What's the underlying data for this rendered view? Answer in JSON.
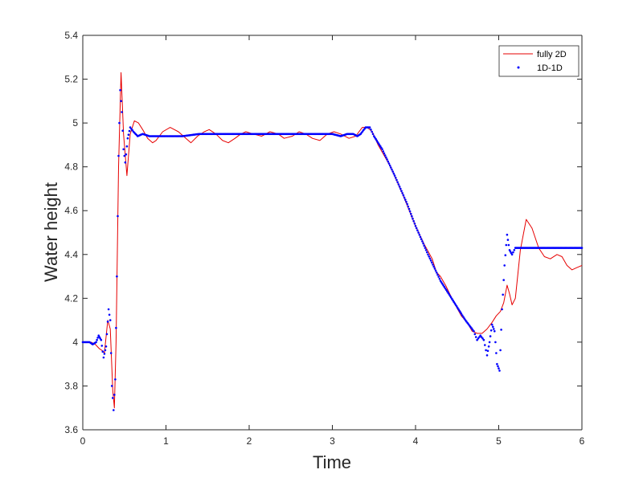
{
  "chart_data": {
    "type": "line",
    "title": "",
    "xlabel": "Time",
    "ylabel": "Water height",
    "xlim": [
      0,
      6
    ],
    "ylim": [
      3.6,
      5.4
    ],
    "xticks": [
      0,
      1,
      2,
      3,
      4,
      5,
      6
    ],
    "yticks": [
      3.6,
      3.8,
      4,
      4.2,
      4.4,
      4.6,
      4.8,
      5,
      5.2,
      5.4
    ],
    "xtick_labels": [
      "0",
      "1",
      "2",
      "3",
      "4",
      "5",
      "6"
    ],
    "ytick_labels": [
      "3.6",
      "3.8",
      "4",
      "4.2",
      "4.4",
      "4.6",
      "4.8",
      "5",
      "5.2",
      "5.4"
    ],
    "grid": false,
    "legend_position": "top-right",
    "colors": {
      "axis": "#262626",
      "fully2d": "#e60000",
      "oneDoneD": "#0000ff"
    },
    "series": [
      {
        "name": "fully 2D",
        "style": "line",
        "points": [
          [
            0.0,
            4.0
          ],
          [
            0.1,
            4.0
          ],
          [
            0.15,
            3.99
          ],
          [
            0.2,
            3.97
          ],
          [
            0.24,
            3.96
          ],
          [
            0.26,
            3.95
          ],
          [
            0.3,
            4.1
          ],
          [
            0.33,
            4.06
          ],
          [
            0.36,
            3.78
          ],
          [
            0.38,
            3.7
          ],
          [
            0.4,
            4.0
          ],
          [
            0.43,
            4.8
          ],
          [
            0.46,
            5.23
          ],
          [
            0.49,
            4.95
          ],
          [
            0.53,
            4.76
          ],
          [
            0.57,
            4.95
          ],
          [
            0.62,
            5.01
          ],
          [
            0.67,
            5.0
          ],
          [
            0.72,
            4.97
          ],
          [
            0.78,
            4.93
          ],
          [
            0.84,
            4.91
          ],
          [
            0.88,
            4.92
          ],
          [
            0.96,
            4.96
          ],
          [
            1.05,
            4.98
          ],
          [
            1.15,
            4.96
          ],
          [
            1.24,
            4.93
          ],
          [
            1.3,
            4.91
          ],
          [
            1.38,
            4.94
          ],
          [
            1.46,
            4.96
          ],
          [
            1.52,
            4.97
          ],
          [
            1.6,
            4.95
          ],
          [
            1.68,
            4.92
          ],
          [
            1.75,
            4.91
          ],
          [
            1.83,
            4.93
          ],
          [
            1.9,
            4.95
          ],
          [
            1.96,
            4.96
          ],
          [
            2.05,
            4.95
          ],
          [
            2.15,
            4.94
          ],
          [
            2.25,
            4.96
          ],
          [
            2.35,
            4.95
          ],
          [
            2.42,
            4.93
          ],
          [
            2.52,
            4.94
          ],
          [
            2.6,
            4.96
          ],
          [
            2.68,
            4.95
          ],
          [
            2.76,
            4.93
          ],
          [
            2.85,
            4.92
          ],
          [
            2.94,
            4.95
          ],
          [
            3.02,
            4.96
          ],
          [
            3.1,
            4.95
          ],
          [
            3.2,
            4.93
          ],
          [
            3.28,
            4.94
          ],
          [
            3.36,
            4.98
          ],
          [
            3.42,
            4.98
          ],
          [
            3.48,
            4.96
          ],
          [
            3.55,
            4.9
          ],
          [
            3.7,
            4.8
          ],
          [
            3.85,
            4.67
          ],
          [
            4.0,
            4.53
          ],
          [
            4.1,
            4.45
          ],
          [
            4.2,
            4.38
          ],
          [
            4.25,
            4.32
          ],
          [
            4.3,
            4.3
          ],
          [
            4.36,
            4.26
          ],
          [
            4.45,
            4.19
          ],
          [
            4.55,
            4.12
          ],
          [
            4.62,
            4.09
          ],
          [
            4.68,
            4.05
          ],
          [
            4.74,
            4.04
          ],
          [
            4.8,
            4.04
          ],
          [
            4.86,
            4.06
          ],
          [
            4.92,
            4.09
          ],
          [
            4.97,
            4.12
          ],
          [
            5.02,
            4.14
          ],
          [
            5.06,
            4.18
          ],
          [
            5.1,
            4.26
          ],
          [
            5.13,
            4.22
          ],
          [
            5.16,
            4.17
          ],
          [
            5.2,
            4.2
          ],
          [
            5.26,
            4.42
          ],
          [
            5.33,
            4.56
          ],
          [
            5.4,
            4.52
          ],
          [
            5.48,
            4.43
          ],
          [
            5.55,
            4.39
          ],
          [
            5.62,
            4.38
          ],
          [
            5.7,
            4.4
          ],
          [
            5.76,
            4.39
          ],
          [
            5.82,
            4.35
          ],
          [
            5.88,
            4.33
          ],
          [
            5.94,
            4.34
          ],
          [
            6.0,
            4.35
          ]
        ]
      },
      {
        "name": "1D-1D",
        "style": "dots",
        "points": [
          [
            0.0,
            4.0
          ],
          [
            0.08,
            4.0
          ],
          [
            0.12,
            3.99
          ],
          [
            0.16,
            4.0
          ],
          [
            0.19,
            4.03
          ],
          [
            0.22,
            4.01
          ],
          [
            0.25,
            3.93
          ],
          [
            0.28,
            3.98
          ],
          [
            0.31,
            4.15
          ],
          [
            0.33,
            4.1
          ],
          [
            0.35,
            3.8
          ],
          [
            0.37,
            3.69
          ],
          [
            0.39,
            3.83
          ],
          [
            0.41,
            4.3
          ],
          [
            0.43,
            4.85
          ],
          [
            0.45,
            5.15
          ],
          [
            0.47,
            5.05
          ],
          [
            0.49,
            4.88
          ],
          [
            0.51,
            4.82
          ],
          [
            0.54,
            4.93
          ],
          [
            0.57,
            4.98
          ],
          [
            0.61,
            4.96
          ],
          [
            0.66,
            4.94
          ],
          [
            0.72,
            4.95
          ],
          [
            0.8,
            4.94
          ],
          [
            0.9,
            4.94
          ],
          [
            1.0,
            4.94
          ],
          [
            1.2,
            4.94
          ],
          [
            1.4,
            4.95
          ],
          [
            1.6,
            4.95
          ],
          [
            1.8,
            4.95
          ],
          [
            2.0,
            4.95
          ],
          [
            2.2,
            4.95
          ],
          [
            2.4,
            4.95
          ],
          [
            2.6,
            4.95
          ],
          [
            2.8,
            4.95
          ],
          [
            3.0,
            4.95
          ],
          [
            3.1,
            4.94
          ],
          [
            3.18,
            4.95
          ],
          [
            3.25,
            4.95
          ],
          [
            3.3,
            4.94
          ],
          [
            3.34,
            4.95
          ],
          [
            3.4,
            4.98
          ],
          [
            3.45,
            4.98
          ],
          [
            3.5,
            4.94
          ],
          [
            3.6,
            4.88
          ],
          [
            3.75,
            4.76
          ],
          [
            3.9,
            4.63
          ],
          [
            4.0,
            4.53
          ],
          [
            4.15,
            4.4
          ],
          [
            4.3,
            4.28
          ],
          [
            4.45,
            4.19
          ],
          [
            4.55,
            4.13
          ],
          [
            4.6,
            4.1
          ],
          [
            4.66,
            4.07
          ],
          [
            4.7,
            4.05
          ],
          [
            4.74,
            4.01
          ],
          [
            4.78,
            4.03
          ],
          [
            4.82,
            4.01
          ],
          [
            4.86,
            3.94
          ],
          [
            4.89,
            4.0
          ],
          [
            4.92,
            4.08
          ],
          [
            4.95,
            4.05
          ],
          [
            4.98,
            3.9
          ],
          [
            5.01,
            3.87
          ],
          [
            5.04,
            4.15
          ],
          [
            5.07,
            4.35
          ],
          [
            5.1,
            4.49
          ],
          [
            5.13,
            4.42
          ],
          [
            5.16,
            4.4
          ],
          [
            5.2,
            4.43
          ],
          [
            5.28,
            4.43
          ],
          [
            5.4,
            4.43
          ],
          [
            5.6,
            4.43
          ],
          [
            5.8,
            4.43
          ],
          [
            6.0,
            4.43
          ]
        ]
      }
    ]
  }
}
